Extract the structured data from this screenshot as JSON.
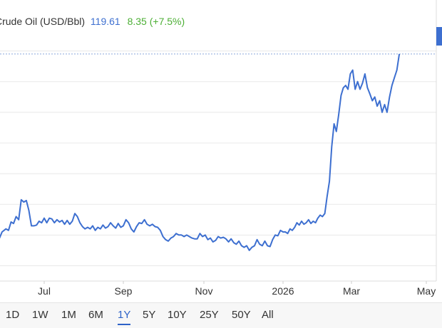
{
  "chart_data": {
    "type": "line",
    "title": "Crude Oil (USD/Bbl)",
    "last_price": "119.61",
    "change": "8.35 (+7.5%)",
    "x_tick_labels": [
      "Jul",
      "Sep",
      "Nov",
      "2026",
      "Mar",
      "May"
    ],
    "y_range": [
      90,
      122
    ],
    "grid": true,
    "series": [
      {
        "name": "Crude Oil (USD/Bbl)",
        "color": "#3d6fd0",
        "points": [
          [
            "2025-05-25",
            96.0
          ],
          [
            "2025-05-27",
            95.6
          ],
          [
            "2025-05-29",
            96.4
          ],
          [
            "2025-06-01",
            96.8
          ],
          [
            "2025-06-03",
            96.6
          ],
          [
            "2025-06-05",
            97.7
          ],
          [
            "2025-06-07",
            97.5
          ],
          [
            "2025-06-09",
            98.4
          ],
          [
            "2025-06-11",
            98.0
          ],
          [
            "2025-06-13",
            100.6
          ],
          [
            "2025-06-15",
            100.3
          ],
          [
            "2025-06-17",
            100.5
          ],
          [
            "2025-06-19",
            99.2
          ],
          [
            "2025-06-21",
            97.2
          ],
          [
            "2025-06-23",
            97.2
          ],
          [
            "2025-06-25",
            97.3
          ],
          [
            "2025-06-27",
            97.8
          ],
          [
            "2025-06-29",
            97.6
          ],
          [
            "2025-07-01",
            98.2
          ],
          [
            "2025-07-03",
            97.6
          ],
          [
            "2025-07-05",
            98.2
          ],
          [
            "2025-07-07",
            98.1
          ],
          [
            "2025-07-09",
            97.6
          ],
          [
            "2025-07-11",
            98.0
          ],
          [
            "2025-07-13",
            97.7
          ],
          [
            "2025-07-15",
            97.9
          ],
          [
            "2025-07-17",
            97.4
          ],
          [
            "2025-07-19",
            97.9
          ],
          [
            "2025-07-21",
            97.4
          ],
          [
            "2025-07-23",
            97.8
          ],
          [
            "2025-07-25",
            98.8
          ],
          [
            "2025-07-27",
            98.4
          ],
          [
            "2025-07-29",
            97.6
          ],
          [
            "2025-07-31",
            97.1
          ],
          [
            "2025-08-02",
            96.8
          ],
          [
            "2025-08-04",
            97.0
          ],
          [
            "2025-08-06",
            96.8
          ],
          [
            "2025-08-08",
            97.2
          ],
          [
            "2025-08-10",
            96.6
          ],
          [
            "2025-08-12",
            97.0
          ],
          [
            "2025-08-14",
            96.8
          ],
          [
            "2025-08-16",
            97.3
          ],
          [
            "2025-08-18",
            96.9
          ],
          [
            "2025-08-20",
            97.1
          ],
          [
            "2025-08-22",
            97.6
          ],
          [
            "2025-08-24",
            97.2
          ],
          [
            "2025-08-26",
            96.9
          ],
          [
            "2025-08-28",
            97.5
          ],
          [
            "2025-08-30",
            97.0
          ],
          [
            "2025-09-01",
            97.2
          ],
          [
            "2025-09-03",
            98.0
          ],
          [
            "2025-09-05",
            97.6
          ],
          [
            "2025-09-07",
            96.8
          ],
          [
            "2025-09-09",
            96.4
          ],
          [
            "2025-09-11",
            97.1
          ],
          [
            "2025-09-13",
            97.6
          ],
          [
            "2025-09-15",
            97.5
          ],
          [
            "2025-09-17",
            98.0
          ],
          [
            "2025-09-19",
            97.4
          ],
          [
            "2025-09-21",
            97.2
          ],
          [
            "2025-09-23",
            97.4
          ],
          [
            "2025-09-25",
            97.1
          ],
          [
            "2025-09-27",
            97.0
          ],
          [
            "2025-09-29",
            96.6
          ],
          [
            "2025-10-01",
            95.8
          ],
          [
            "2025-10-03",
            95.4
          ],
          [
            "2025-10-05",
            95.2
          ],
          [
            "2025-10-07",
            95.6
          ],
          [
            "2025-10-09",
            95.8
          ],
          [
            "2025-10-11",
            96.2
          ],
          [
            "2025-10-13",
            96.0
          ],
          [
            "2025-10-15",
            96.0
          ],
          [
            "2025-10-17",
            95.8
          ],
          [
            "2025-10-19",
            96.0
          ],
          [
            "2025-10-21",
            95.8
          ],
          [
            "2025-10-23",
            95.6
          ],
          [
            "2025-10-25",
            95.5
          ],
          [
            "2025-10-27",
            95.5
          ],
          [
            "2025-10-29",
            96.2
          ],
          [
            "2025-10-31",
            95.8
          ],
          [
            "2025-11-02",
            96.0
          ],
          [
            "2025-11-04",
            95.4
          ],
          [
            "2025-11-06",
            95.6
          ],
          [
            "2025-11-08",
            95.1
          ],
          [
            "2025-11-10",
            95.3
          ],
          [
            "2025-11-12",
            95.8
          ],
          [
            "2025-11-14",
            95.6
          ],
          [
            "2025-11-16",
            95.7
          ],
          [
            "2025-11-18",
            95.5
          ],
          [
            "2025-11-20",
            95.1
          ],
          [
            "2025-11-22",
            95.5
          ],
          [
            "2025-11-24",
            95.0
          ],
          [
            "2025-11-26",
            94.8
          ],
          [
            "2025-11-28",
            95.2
          ],
          [
            "2025-11-30",
            94.6
          ],
          [
            "2025-12-02",
            94.4
          ],
          [
            "2025-12-04",
            94.6
          ],
          [
            "2025-12-06",
            94.0
          ],
          [
            "2025-12-08",
            94.4
          ],
          [
            "2025-12-10",
            94.6
          ],
          [
            "2025-12-12",
            95.4
          ],
          [
            "2025-12-14",
            94.8
          ],
          [
            "2025-12-16",
            94.6
          ],
          [
            "2025-12-18",
            95.2
          ],
          [
            "2025-12-20",
            94.6
          ],
          [
            "2025-12-22",
            94.5
          ],
          [
            "2025-12-24",
            95.4
          ],
          [
            "2025-12-26",
            96.0
          ],
          [
            "2025-12-28",
            95.9
          ],
          [
            "2025-12-30",
            96.6
          ],
          [
            "2026-01-01",
            96.4
          ],
          [
            "2026-01-03",
            96.4
          ],
          [
            "2026-01-05",
            96.2
          ],
          [
            "2026-01-07",
            96.8
          ],
          [
            "2026-01-09",
            96.6
          ],
          [
            "2026-01-11",
            97.0
          ],
          [
            "2026-01-13",
            97.6
          ],
          [
            "2026-01-15",
            97.3
          ],
          [
            "2026-01-17",
            97.8
          ],
          [
            "2026-01-19",
            97.4
          ],
          [
            "2026-01-21",
            97.6
          ],
          [
            "2026-01-23",
            98.0
          ],
          [
            "2026-01-25",
            97.5
          ],
          [
            "2026-01-27",
            97.8
          ],
          [
            "2026-01-29",
            97.6
          ],
          [
            "2026-01-31",
            98.2
          ],
          [
            "2026-02-02",
            98.6
          ],
          [
            "2026-02-04",
            98.4
          ],
          [
            "2026-02-06",
            98.8
          ],
          [
            "2026-02-08",
            101.0
          ],
          [
            "2026-02-10",
            103.0
          ],
          [
            "2026-02-12",
            107.5
          ],
          [
            "2026-02-14",
            110.5
          ],
          [
            "2026-02-16",
            109.5
          ],
          [
            "2026-02-18",
            111.7
          ],
          [
            "2026-02-20",
            114.2
          ],
          [
            "2026-02-22",
            115.2
          ],
          [
            "2026-02-24",
            115.5
          ],
          [
            "2026-02-26",
            115.0
          ],
          [
            "2026-02-28",
            117.0
          ],
          [
            "2026-03-02",
            117.5
          ],
          [
            "2026-03-04",
            115.0
          ],
          [
            "2026-03-06",
            116.0
          ],
          [
            "2026-03-08",
            115.0
          ],
          [
            "2026-03-10",
            115.8
          ],
          [
            "2026-03-12",
            117.0
          ],
          [
            "2026-03-14",
            115.2
          ],
          [
            "2026-03-16",
            114.4
          ],
          [
            "2026-03-18",
            113.5
          ],
          [
            "2026-03-20",
            114.0
          ],
          [
            "2026-03-22",
            112.8
          ],
          [
            "2026-03-24",
            113.5
          ],
          [
            "2026-03-26",
            112.0
          ],
          [
            "2026-03-28",
            113.0
          ],
          [
            "2026-03-30",
            112.0
          ],
          [
            "2026-04-01",
            114.0
          ],
          [
            "2026-04-03",
            115.5
          ],
          [
            "2026-04-05",
            116.5
          ],
          [
            "2026-04-07",
            117.5
          ],
          [
            "2026-04-09",
            119.6
          ]
        ]
      }
    ]
  },
  "range_buttons": [
    "1D",
    "1W",
    "1M",
    "6M",
    "1Y",
    "5Y",
    "10Y",
    "25Y",
    "50Y",
    "All"
  ],
  "active_range": "1Y"
}
